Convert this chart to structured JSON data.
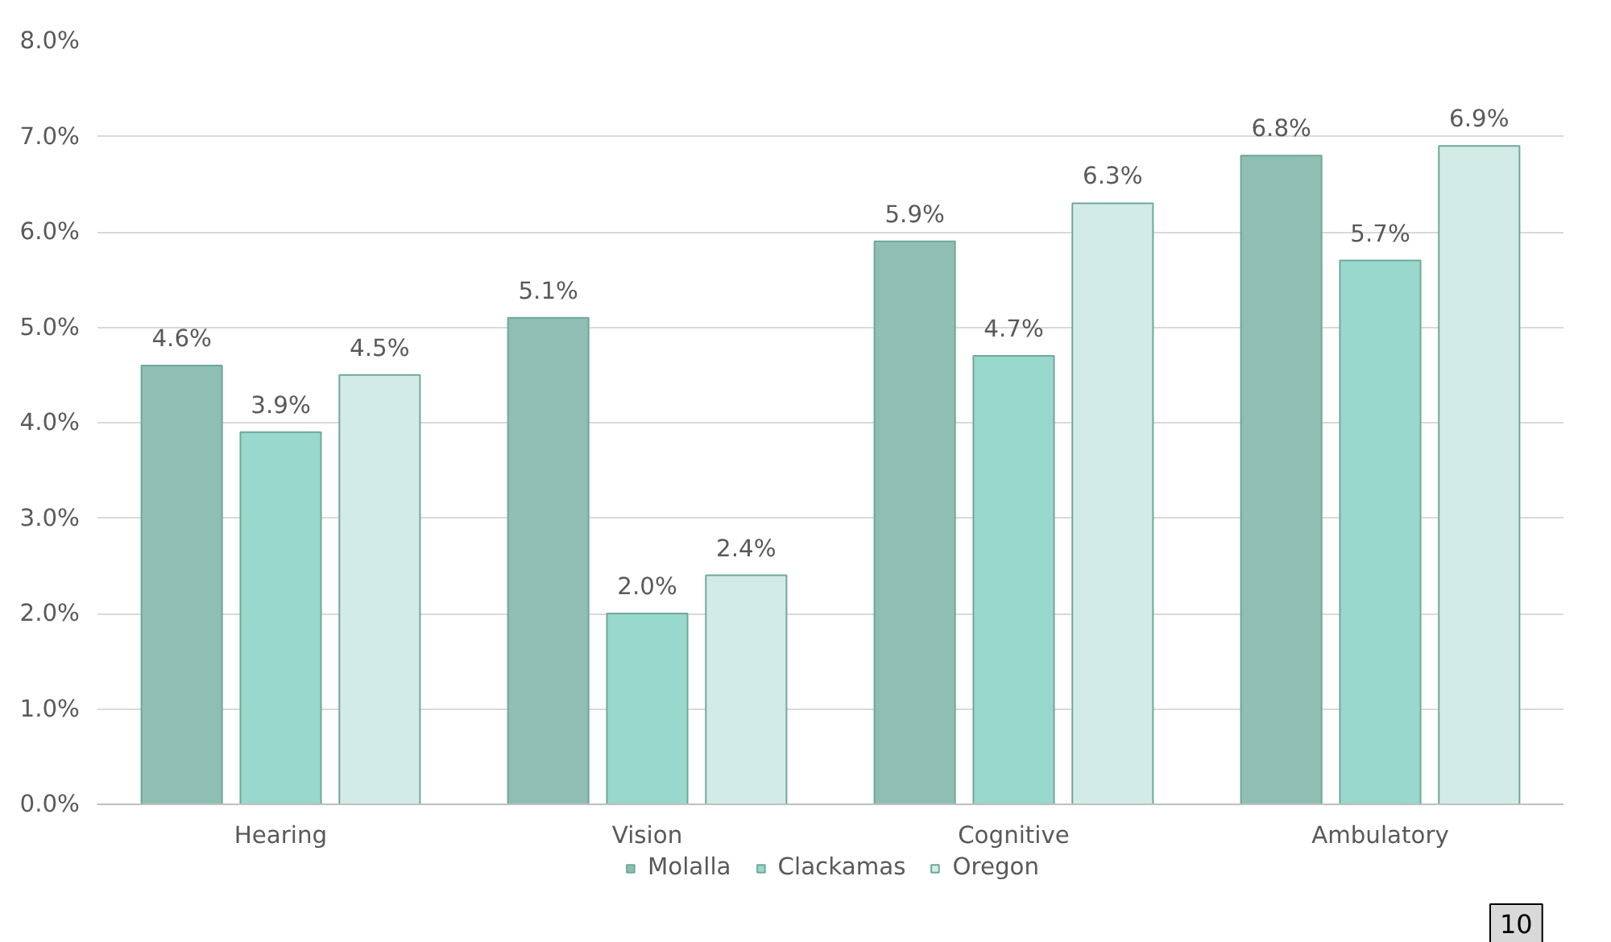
{
  "chart_data": {
    "type": "bar",
    "categories": [
      "Hearing",
      "Vision",
      "Cognitive",
      "Ambulatory"
    ],
    "series": [
      {
        "name": "Molalla",
        "color": "#8fbfb3",
        "values": [
          4.6,
          5.1,
          5.9,
          6.8
        ],
        "value_labels": [
          "4.6%",
          "5.1%",
          "5.9%",
          "6.8%"
        ]
      },
      {
        "name": "Clackamas",
        "color": "#99d8cc",
        "values": [
          3.9,
          2.0,
          4.7,
          5.7
        ],
        "value_labels": [
          "3.9%",
          "2.0%",
          "4.7%",
          "5.7%"
        ]
      },
      {
        "name": "Oregon",
        "color": "#d3ebe7",
        "values": [
          4.5,
          2.4,
          6.3,
          6.9
        ],
        "value_labels": [
          "4.5%",
          "2.4%",
          "6.3%",
          "6.9%"
        ]
      }
    ],
    "ylim": [
      0,
      8
    ],
    "yticks": [
      {
        "value": 0,
        "label": "0.0%"
      },
      {
        "value": 1,
        "label": "1.0%"
      },
      {
        "value": 2,
        "label": "2.0%"
      },
      {
        "value": 3,
        "label": "3.0%"
      },
      {
        "value": 4,
        "label": "4.0%"
      },
      {
        "value": 5,
        "label": "5.0%"
      },
      {
        "value": 6,
        "label": "6.0%"
      },
      {
        "value": 7,
        "label": "7.0%"
      },
      {
        "value": 8,
        "label": "8.0%"
      }
    ],
    "grid": "y",
    "legend": "bottom",
    "annotations": [
      "10"
    ]
  }
}
